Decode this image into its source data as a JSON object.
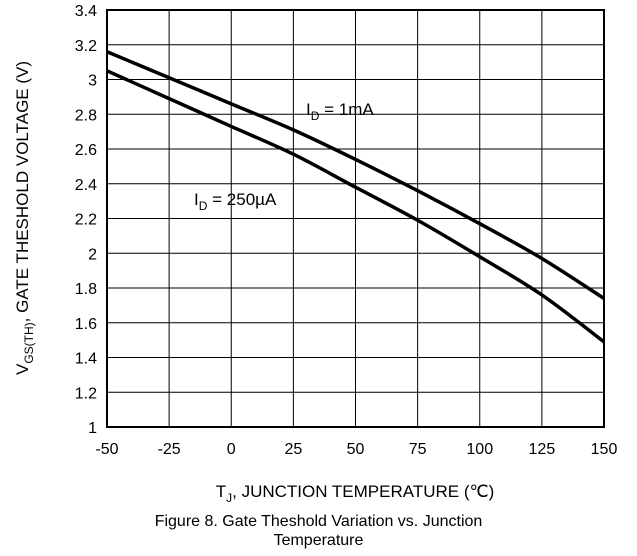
{
  "chart_data": {
    "type": "line",
    "xlabel_main": "T",
    "xlabel_sub": "J",
    "xlabel_rest": ", JUNCTION TEMPERATURE (℃)",
    "ylabel_main": "V",
    "ylabel_sub": "GS(TH)",
    "ylabel_rest": ", GATE THESHOLD VOLTAGE (V)",
    "xlim": [
      -50,
      150
    ],
    "ylim": [
      1,
      3.4
    ],
    "x_ticks": [
      -50,
      -25,
      0,
      25,
      50,
      75,
      100,
      125,
      150
    ],
    "y_ticks": [
      "1",
      "1.2",
      "1.4",
      "1.6",
      "1.8",
      "2",
      "2.2",
      "2.4",
      "2.6",
      "2.8",
      "3",
      "3.2",
      "3.4"
    ],
    "grid": true,
    "series": [
      {
        "label_main": "I",
        "label_sub": "D",
        "label_rest": " = 1mA",
        "x": [
          -50,
          -25,
          0,
          25,
          50,
          75,
          100,
          125,
          150
        ],
        "y": [
          3.16,
          3.01,
          2.86,
          2.71,
          2.54,
          2.36,
          2.17,
          1.97,
          1.74
        ]
      },
      {
        "label_main": "I",
        "label_sub": "D",
        "label_rest": " = 250µA",
        "x": [
          -50,
          -25,
          0,
          25,
          50,
          75,
          100,
          125,
          150
        ],
        "y": [
          3.05,
          2.89,
          2.73,
          2.57,
          2.38,
          2.19,
          1.98,
          1.76,
          1.49
        ]
      }
    ]
  },
  "caption": {
    "line1": "Figure 8. Gate Theshold Variation vs. Junction",
    "line2": "Temperature"
  }
}
